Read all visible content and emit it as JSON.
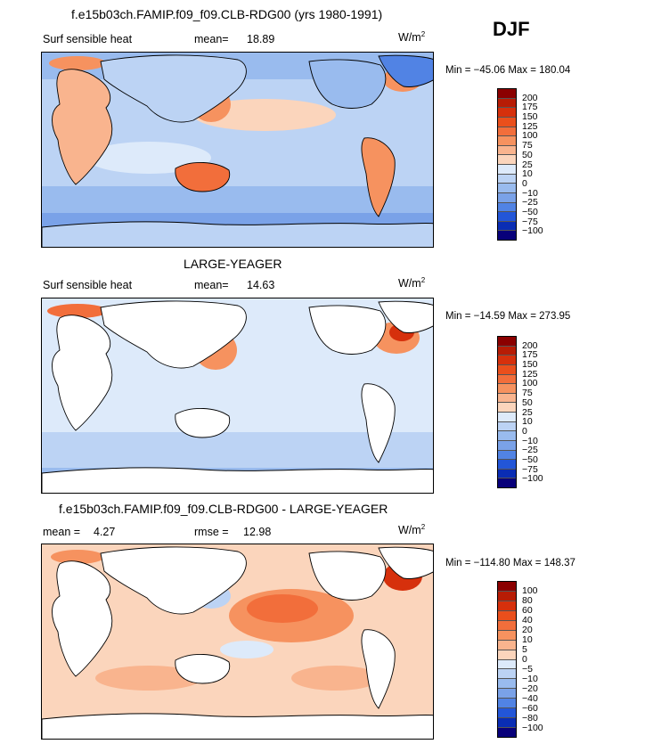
{
  "season": "DJF",
  "units_base": "W/m",
  "units_exp": "2",
  "panels": [
    {
      "title": "f.e15b03ch.FAMIP.f09_f09.CLB-RDG00 (yrs 1980-1991)",
      "variable": "Surf sensible heat",
      "stat1_label": "mean=",
      "stat1_value": "18.89",
      "minmax": "Min = −45.06  Max = 180.04",
      "levels": [
        "200",
        "175",
        "150",
        "125",
        "100",
        "75",
        "50",
        "25",
        "10",
        "0",
        "−10",
        "−25",
        "−50",
        "−75",
        "−100"
      ],
      "colors": [
        "#8b0000",
        "#b71c05",
        "#d6300c",
        "#ea4f1c",
        "#f26e3b",
        "#f6925f",
        "#f9b48e",
        "#fbd5bc",
        "#ddeafa",
        "#bcd3f4",
        "#99bbee",
        "#7aa2e8",
        "#5183e4",
        "#2356d8",
        "#0a2db4",
        "#08007a"
      ]
    },
    {
      "title": "LARGE-YEAGER",
      "variable": "Surf sensible heat",
      "stat1_label": "mean=",
      "stat1_value": "14.63",
      "minmax": "Min = −14.59  Max = 273.95",
      "levels": [
        "200",
        "175",
        "150",
        "125",
        "100",
        "75",
        "50",
        "25",
        "10",
        "0",
        "−10",
        "−25",
        "−50",
        "−75",
        "−100"
      ],
      "colors": [
        "#8b0000",
        "#b71c05",
        "#d6300c",
        "#ea4f1c",
        "#f26e3b",
        "#f6925f",
        "#f9b48e",
        "#fbd5bc",
        "#ddeafa",
        "#bcd3f4",
        "#99bbee",
        "#7aa2e8",
        "#5183e4",
        "#2356d8",
        "#0a2db4",
        "#08007a"
      ]
    },
    {
      "title": "f.e15b03ch.FAMIP.f09_f09.CLB-RDG00 - LARGE-YEAGER",
      "stat1_label": "mean =",
      "stat1_value": "4.27",
      "stat2_label": "rmse =",
      "stat2_value": "12.98",
      "minmax": "Min = −114.80  Max = 148.37",
      "levels": [
        "100",
        "80",
        "60",
        "40",
        "20",
        "10",
        "5",
        "0",
        "−5",
        "−10",
        "−20",
        "−40",
        "−60",
        "−80",
        "−100"
      ],
      "colors": [
        "#8b0000",
        "#b71c05",
        "#d6300c",
        "#ea4f1c",
        "#f26e3b",
        "#f6925f",
        "#f9b48e",
        "#fbd5bc",
        "#ddeafa",
        "#bcd3f4",
        "#99bbee",
        "#7aa2e8",
        "#5183e4",
        "#2356d8",
        "#0a2db4",
        "#08007a"
      ]
    }
  ]
}
